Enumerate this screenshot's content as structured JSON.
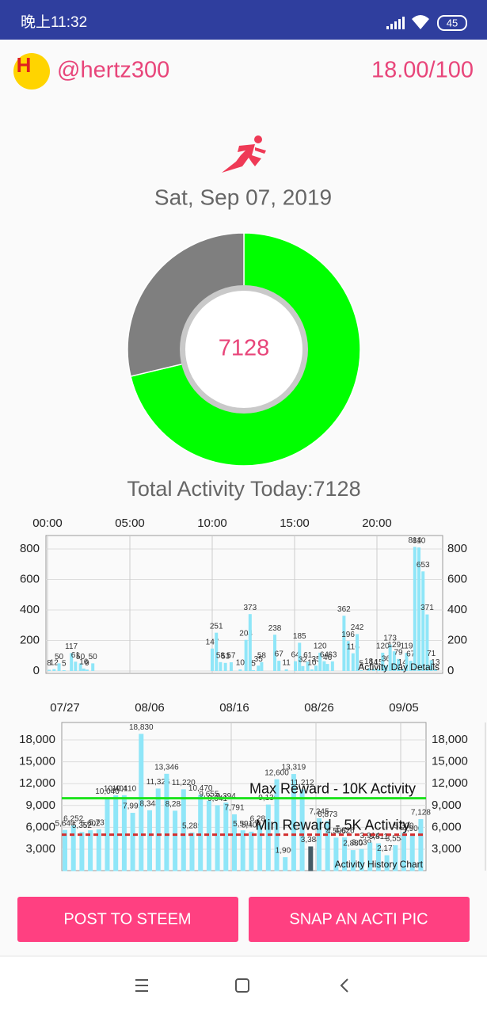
{
  "status_bar": {
    "time": "晚上11:32",
    "battery": "45"
  },
  "header": {
    "username": "@hertz300",
    "score": "18.00/100"
  },
  "date": "Sat, Sep 07, 2019",
  "chart_data": [
    {
      "type": "pie",
      "values": [
        7128,
        2872
      ],
      "colors": [
        "#00ff00",
        "#7f7f7f"
      ],
      "center_label": "7128",
      "caption": "Total Activity Today:7128"
    },
    {
      "type": "bar",
      "title": "Activity Day Details",
      "x": [
        0.1,
        0.4,
        0.7,
        1.0,
        1.45,
        1.7,
        2.0,
        2.2,
        2.4,
        2.75,
        10.0,
        10.25,
        10.5,
        10.8,
        11.15,
        11.7,
        12.05,
        12.3,
        12.5,
        12.8,
        13.0,
        13.8,
        14.05,
        14.5,
        15.05,
        15.3,
        15.5,
        15.8,
        16.05,
        16.3,
        16.55,
        16.8,
        17.0,
        17.3,
        18.0,
        18.25,
        18.55,
        18.8,
        19.05,
        19.5,
        19.8,
        20.1,
        20.35,
        20.55,
        20.8,
        21.05,
        21.3,
        21.55,
        21.8,
        22.05,
        22.3,
        22.55,
        22.8,
        23.05,
        23.3,
        23.55
      ],
      "values": [
        8,
        12,
        50,
        5,
        117,
        61,
        50,
        16,
        9,
        50,
        147,
        251,
        58,
        53,
        57,
        10,
        204,
        373,
        5,
        35,
        58,
        238,
        67,
        11,
        64,
        185,
        32,
        61,
        10,
        35,
        120,
        64,
        46,
        63,
        362,
        196,
        116,
        242,
        5,
        18,
        14,
        15,
        120,
        36,
        173,
        129,
        79,
        14,
        119,
        67,
        814,
        810,
        653,
        371,
        71,
        13
      ],
      "color": "#8fe6f8",
      "xlim": [
        0,
        24
      ],
      "xticks": [
        {
          "value": 0,
          "label": "00:00"
        },
        {
          "value": 5,
          "label": "05:00"
        },
        {
          "value": 10,
          "label": "10:00"
        },
        {
          "value": 15,
          "label": "15:00"
        },
        {
          "value": 20,
          "label": "20:00"
        }
      ],
      "ylim": [
        0,
        888
      ],
      "yticks": [
        0,
        200,
        400,
        600,
        800
      ],
      "grid": true
    },
    {
      "type": "bar",
      "title": "Activity History Chart",
      "categories": [
        "07/27",
        null,
        null,
        null,
        null,
        null,
        null,
        null,
        null,
        null,
        "08/06",
        null,
        null,
        null,
        null,
        null,
        null,
        null,
        null,
        null,
        "08/16",
        null,
        null,
        null,
        null,
        null,
        null,
        null,
        null,
        null,
        "08/26",
        null,
        null,
        null,
        null,
        null,
        null,
        null,
        null,
        null,
        "09/05",
        null,
        null
      ],
      "values": [
        5640,
        6252,
        5352,
        5602,
        5737,
        10040,
        10401,
        10410,
        7995,
        18830,
        8348,
        11326,
        13346,
        8284,
        11220,
        5289,
        10470,
        9655,
        9041,
        9394,
        7791,
        5591,
        5408,
        6282,
        9130,
        12600,
        1906,
        13319,
        11212,
        3384,
        7245,
        6873,
        4596,
        4626,
        2880,
        3039,
        3914,
        3811,
        2177,
        3554,
        5300,
        4900,
        7128
      ],
      "value_labels": [
        "5,640",
        "6,252",
        "5,352",
        "5,602",
        "5,737",
        "10,040",
        "10,401",
        "10,410",
        "7,995",
        "18,830",
        "8,348",
        "11,326",
        "13,346",
        "8,284",
        "11,220",
        "5,289",
        "10,470",
        "9,655",
        "9,041",
        "9,394",
        "7,791",
        "5,591",
        "5,408",
        "6,282",
        "9,130",
        "12,600",
        "1,906",
        "13,319",
        "11,212",
        "3,384",
        "7,245",
        "6,873",
        "4,596",
        "4,626",
        "2,880",
        "3,039",
        "3,914",
        "3,811",
        "2,177",
        "3,554",
        "5,300",
        "4,900",
        "7,128"
      ],
      "color": "#8fe6f8",
      "highlight_index": 29,
      "highlight_color": "#455a64",
      "ylim": [
        0,
        20400
      ],
      "yticks": [
        {
          "value": 3000,
          "label": "3,000"
        },
        {
          "value": 6000,
          "label": "6,000"
        },
        {
          "value": 9000,
          "label": "9,000"
        },
        {
          "value": 12000,
          "label": "12,000"
        },
        {
          "value": 15000,
          "label": "15,000"
        },
        {
          "value": 18000,
          "label": "18,000"
        }
      ],
      "grid": true,
      "reference_lines": [
        {
          "value": 10000,
          "label": "Max Reward - 10K Activity",
          "color": "#1ee31e",
          "style": "solid"
        },
        {
          "value": 5000,
          "label": "Min Reward - 5K Activity",
          "color": "#d32f2f",
          "style": "dashed"
        }
      ]
    }
  ],
  "buttons": [
    "POST TO STEEM",
    "SNAP AN ACTI PIC"
  ]
}
